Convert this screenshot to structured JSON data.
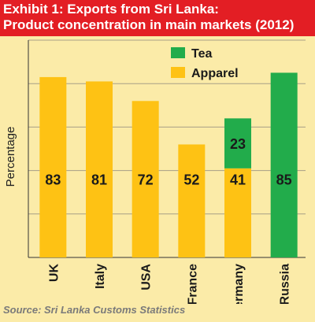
{
  "title_line1": "Exhibit 1: Exports from Sri Lanka:",
  "title_line2": "Product concentration in main markets (2012)",
  "source": "Source: Sri Lanka Customs Statistics",
  "colors": {
    "title_bg": "#e31e24",
    "background": "#fbeba8",
    "tea": "#22ac4b",
    "apparel": "#fec214"
  },
  "chart_data": {
    "type": "bar",
    "stacked": true,
    "ylabel": "Percentage",
    "xlabel": "",
    "ylim": [
      0,
      100
    ],
    "grid": true,
    "legend_position": "top-right",
    "show_y_tick_labels": false,
    "categories": [
      "UK",
      "Italy",
      "USA",
      "France",
      "Germany",
      "Russia"
    ],
    "series": [
      {
        "name": "Apparel",
        "values": [
          83,
          81,
          72,
          52,
          41,
          0
        ],
        "labels": [
          "83",
          "81",
          "72",
          "52",
          "41",
          ""
        ]
      },
      {
        "name": "Tea",
        "values": [
          0,
          0,
          0,
          0,
          23,
          85
        ],
        "labels": [
          "",
          "",
          "",
          "",
          "23",
          "85"
        ]
      }
    ]
  }
}
